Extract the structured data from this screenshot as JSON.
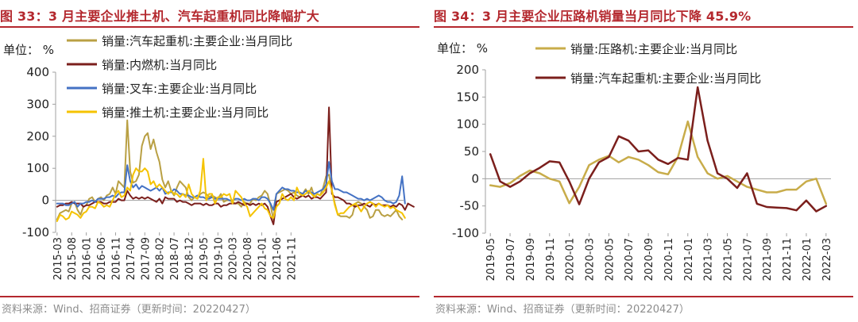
{
  "charts": [
    {
      "fig_title": "图 33：3 月主要企业推土机、汽车起重机同比降幅扩大",
      "source": "资料来源：Wind、招商证券（更新时间：20220427）"
    },
    {
      "fig_title": "图 34：3 月主要企业压路机销量当月同比下降 45.9%",
      "source": "资料来源：Wind、招商证券（更新时间：20220427）"
    }
  ],
  "chart_data": [
    {
      "type": "line",
      "title": "图 33：3 月主要企业推土机、汽车起重机同比降幅扩大",
      "ylabel": "单位： %",
      "ylim": [
        -100,
        400
      ],
      "yticks": [
        -100,
        0,
        100,
        200,
        300,
        400
      ],
      "x_tick_labels": [
        "2015-03",
        "2015-08",
        "2016-01",
        "2016-06",
        "2016-11",
        "2017-04",
        "2017-09",
        "2018-02",
        "2018-07",
        "2018-12",
        "2019-05",
        "2019-10",
        "2020-03",
        "2020-08",
        "2021-01",
        "2021-06",
        "2021-11"
      ],
      "x_start": "2015-03",
      "x_end": "2022-03",
      "legend_position": "top",
      "series": [
        {
          "name": "销量:汽车起重机:主要企业:当月同比",
          "color": "#b9a044",
          "values": [
            -60,
            -40,
            -35,
            -30,
            -35,
            -10,
            -5,
            -30,
            -45,
            -20,
            -15,
            5,
            10,
            -5,
            5,
            10,
            0,
            15,
            20,
            40,
            20,
            60,
            50,
            40,
            250,
            90,
            55,
            60,
            80,
            170,
            200,
            210,
            160,
            190,
            150,
            120,
            65,
            40,
            60,
            30,
            15,
            40,
            60,
            50,
            40,
            10,
            0,
            10,
            5,
            20,
            25,
            20,
            10,
            15,
            10,
            5,
            20,
            -5,
            0,
            0,
            -5,
            -10,
            -10,
            -20,
            -5,
            -10,
            -10,
            5,
            0,
            10,
            15,
            30,
            20,
            -15,
            -60,
            20,
            25,
            30,
            35,
            30,
            20,
            25,
            15,
            10,
            20,
            35,
            20,
            40,
            10,
            20,
            15,
            40,
            75,
            80,
            30,
            -10,
            -45,
            -50,
            -50,
            -50,
            -55,
            -45,
            -10,
            -5,
            -10,
            -20,
            -30,
            -55,
            -50,
            -30,
            -30,
            -45,
            -50,
            -45,
            -50,
            -40,
            -30,
            -50,
            -60
          ]
        },
        {
          "name": "销量:内燃机:当月同比",
          "color": "#7b1f1c",
          "values": [
            -20,
            -15,
            -15,
            -10,
            -10,
            -5,
            -10,
            -10,
            -10,
            -20,
            -15,
            -15,
            -10,
            -5,
            -5,
            -5,
            -10,
            -10,
            -5,
            -5,
            -5,
            5,
            0,
            0,
            30,
            15,
            5,
            10,
            5,
            10,
            5,
            10,
            5,
            0,
            -5,
            5,
            -10,
            10,
            5,
            5,
            5,
            -5,
            0,
            -5,
            -5,
            -10,
            -15,
            -10,
            -10,
            -10,
            -15,
            -10,
            -15,
            -15,
            -10,
            -10,
            -20,
            -15,
            -15,
            -10,
            -10,
            -10,
            -5,
            -10,
            -15,
            -10,
            -15,
            -10,
            -15,
            -10,
            -15,
            -10,
            -20,
            -50,
            -75,
            -5,
            0,
            5,
            10,
            15,
            20,
            10,
            5,
            10,
            15,
            10,
            15,
            5,
            10,
            10,
            5,
            15,
            25,
            290,
            20,
            10,
            10,
            5,
            0,
            -10,
            -10,
            -15,
            -20,
            -15,
            -15,
            -10,
            -15,
            -20,
            -10,
            -15,
            -10,
            -15,
            -15,
            -15,
            -20,
            -15,
            -20,
            -10,
            -15,
            -30,
            -10,
            -15,
            -20
          ]
        },
        {
          "name": "销量:叉车:主要企业:当月同比",
          "color": "#4472c4",
          "values": [
            -10,
            -10,
            -10,
            -15,
            -15,
            -10,
            -5,
            -20,
            -10,
            -10,
            -5,
            -5,
            0,
            -5,
            5,
            5,
            5,
            10,
            10,
            15,
            10,
            20,
            25,
            25,
            110,
            60,
            40,
            50,
            35,
            45,
            40,
            35,
            30,
            35,
            40,
            30,
            40,
            20,
            25,
            25,
            35,
            30,
            20,
            20,
            15,
            15,
            10,
            10,
            15,
            10,
            10,
            5,
            5,
            10,
            5,
            5,
            5,
            5,
            5,
            0,
            0,
            5,
            5,
            0,
            5,
            0,
            0,
            5,
            5,
            0,
            10,
            10,
            5,
            -10,
            -30,
            20,
            30,
            40,
            35,
            35,
            30,
            30,
            25,
            25,
            20,
            30,
            25,
            25,
            20,
            25,
            30,
            35,
            50,
            120,
            60,
            35,
            35,
            30,
            25,
            25,
            20,
            15,
            10,
            5,
            5,
            0,
            5,
            0,
            5,
            10,
            15,
            10,
            0,
            -5,
            -5,
            -10,
            -5,
            15,
            75,
            -10
          ]
        },
        {
          "name": "销量:推土机:主要企业:当月同比",
          "color": "#f5c300",
          "values": [
            -65,
            -45,
            -50,
            -60,
            -55,
            -35,
            -40,
            -45,
            -55,
            -40,
            -35,
            -20,
            -20,
            -25,
            -5,
            -10,
            -20,
            -15,
            -20,
            0,
            20,
            30,
            10,
            15,
            40,
            30,
            80,
            100,
            90,
            90,
            100,
            90,
            50,
            60,
            40,
            50,
            40,
            30,
            20,
            30,
            20,
            20,
            10,
            20,
            10,
            50,
            20,
            10,
            5,
            30,
            130,
            0,
            20,
            20,
            -10,
            10,
            10,
            20,
            15,
            20,
            -10,
            30,
            20,
            10,
            -10,
            -20,
            -50,
            -40,
            -30,
            -20,
            -10,
            -25,
            -30,
            -50,
            -55,
            -20,
            -10,
            20,
            5,
            0,
            10,
            0,
            40,
            20,
            15,
            20,
            30,
            20,
            10,
            20,
            15,
            25,
            40,
            60,
            30,
            -15,
            -45,
            -40,
            -40,
            -30,
            -20,
            -15,
            -10,
            -20,
            -35,
            -20,
            -10,
            -5,
            -10,
            -20,
            -10,
            -15,
            -20,
            -15,
            -25,
            -20,
            -30,
            -35,
            -40,
            -55
          ]
        }
      ]
    },
    {
      "type": "line",
      "title": "图 34：3 月主要企业压路机销量当月同比下降 45.9%",
      "ylabel": "单位： %",
      "ylim": [
        -100,
        200
      ],
      "yticks": [
        -100,
        -50,
        0,
        50,
        100,
        150,
        200
      ],
      "categories": [
        "2019-05",
        "2019-06",
        "2019-07",
        "2019-08",
        "2019-09",
        "2019-10",
        "2019-11",
        "2019-12",
        "2020-01",
        "2020-02",
        "2020-03",
        "2020-04",
        "2020-05",
        "2020-06",
        "2020-07",
        "2020-08",
        "2020-09",
        "2020-10",
        "2020-11",
        "2020-12",
        "2021-01",
        "2021-02",
        "2021-03",
        "2021-04",
        "2021-05",
        "2021-06",
        "2021-07",
        "2021-08",
        "2021-09",
        "2021-10",
        "2021-11",
        "2021-12",
        "2022-01",
        "2022-02",
        "2022-03"
      ],
      "x_tick_labels": [
        "2019-05",
        "2019-07",
        "2019-09",
        "2019-11",
        "2020-01",
        "2020-03",
        "2020-05",
        "2020-07",
        "2020-09",
        "2020-11",
        "2021-01",
        "2021-03",
        "2021-05",
        "2021-07",
        "2021-09",
        "2021-11",
        "2022-01",
        "2022-03"
      ],
      "legend_position": "top",
      "series": [
        {
          "name": "销量:压路机:主要企业:当月同比",
          "color": "#c8ac4a",
          "values": [
            -12,
            -15,
            -8,
            5,
            15,
            10,
            0,
            -5,
            -45,
            -15,
            25,
            35,
            42,
            30,
            40,
            35,
            25,
            12,
            8,
            40,
            105,
            40,
            10,
            0,
            5,
            -5,
            -15,
            -20,
            -25,
            -25,
            -20,
            -20,
            -5,
            0,
            -45.9
          ]
        },
        {
          "name": "销量:汽车起重机:主要企业:当月同比",
          "color": "#7b1f1c",
          "values": [
            45,
            -5,
            -15,
            -5,
            10,
            20,
            32,
            30,
            -5,
            -47,
            0,
            30,
            40,
            78,
            70,
            50,
            52,
            35,
            27,
            38,
            35,
            168,
            70,
            10,
            0,
            -17,
            10,
            -46,
            -52,
            -53,
            -54,
            -58,
            -40,
            -60,
            -50
          ]
        }
      ]
    }
  ]
}
